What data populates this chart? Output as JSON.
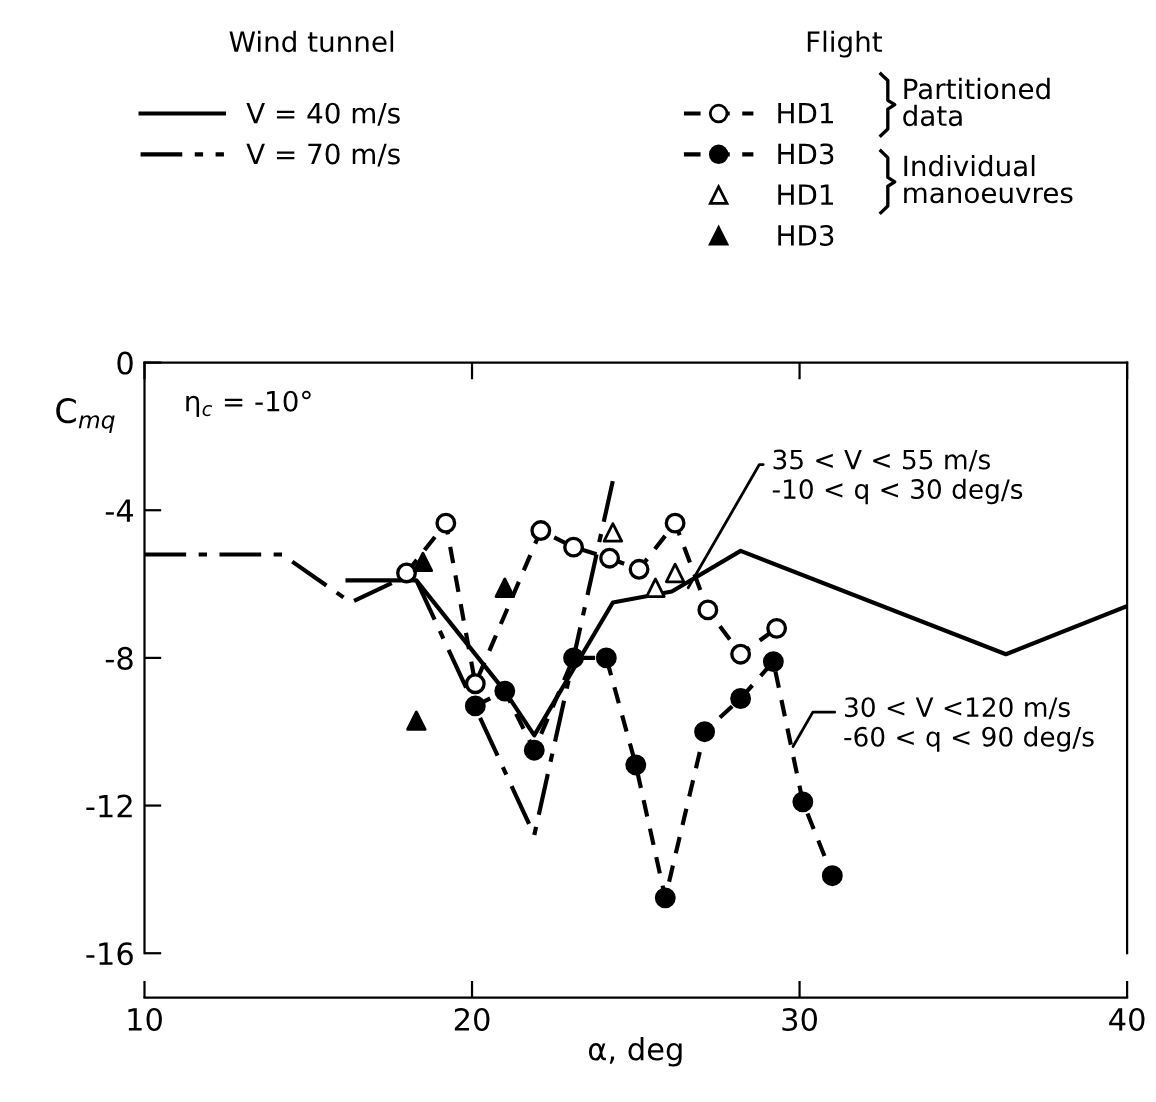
{
  "chart_data": {
    "type": "line",
    "ylabel": "C$_{mq}$",
    "xlabel": "α, deg",
    "xlim": [
      10,
      40
    ],
    "xticks": [
      10,
      20,
      30,
      40
    ],
    "ylim": [
      -16,
      0
    ],
    "yticks": [
      0,
      -4,
      -8,
      -12,
      -16
    ],
    "grid": false,
    "legend": "top",
    "series": [
      {
        "name": "V = 40 m/s",
        "color": "#000000",
        "line_style": "solid",
        "marker": "none",
        "x": [
          16.2,
          18.3,
          21.0,
          21.9,
          24.3,
          26.1,
          28.2,
          36.3,
          40
        ],
        "values": [
          -5.9,
          -5.9,
          -8.9,
          -10.1,
          -6.5,
          -6.2,
          -5.1,
          -7.9,
          -6.6
        ]
      },
      {
        "name": "V = 70 m/s",
        "color": "#000000",
        "line_style": "dashdot",
        "marker": "none",
        "x": [
          10,
          14.2,
          16.3,
          18.2,
          21.9,
          24.3
        ],
        "values": [
          -5.2,
          -5.2,
          -6.5,
          -5.7,
          -12.8,
          -3.2
        ]
      },
      {
        "name": "HD1",
        "color": "#000000",
        "colors": [
          "#ffffff",
          "#ffffff",
          "#ffffff",
          "#ffffff",
          "#ffffff",
          "#ffffff",
          "#ffffff",
          "#ffffff",
          "#ffffff",
          "#ffffff",
          "#ffffff"
        ],
        "line_style": "dashed",
        "marker": "circle",
        "x": [
          18.0,
          19.2,
          20.1,
          22.1,
          23.1,
          24.2,
          25.1,
          26.2,
          27.2,
          28.2,
          29.3
        ],
        "values": [
          -5.7,
          -4.35,
          -8.7,
          -4.55,
          -5.0,
          -5.3,
          -5.6,
          -4.35,
          -6.7,
          -7.9,
          -7.2
        ]
      },
      {
        "name": "HD3",
        "color": "#000000",
        "line_style": "dashed",
        "marker": "circle",
        "x": [
          20.1,
          21.0,
          21.9,
          23.1,
          24.1,
          25.0,
          25.9,
          27.1,
          28.2,
          29.2,
          30.1,
          31.0
        ],
        "values": [
          -9.3,
          -8.9,
          -10.5,
          -8.0,
          -8.0,
          -10.9,
          -14.5,
          -10.0,
          -9.1,
          -8.1,
          -11.9,
          -13.9
        ]
      },
      {
        "name": "HD1",
        "type": "scatter",
        "color": "#000000",
        "colors": [
          "#ffffff",
          "#ffffff",
          "#ffffff"
        ],
        "marker": "triangle",
        "x": [
          24.3,
          25.6,
          26.2
        ],
        "values": [
          -4.6,
          -6.1,
          -5.7
        ]
      },
      {
        "name": "HD3",
        "type": "scatter",
        "color": "#000000",
        "marker": "triangle",
        "x": [
          18.3,
          18.5,
          21.0
        ],
        "values": [
          -9.7,
          -5.4,
          -6.1
        ]
      }
    ],
    "annotations": [
      "Wind tunnel",
      "Flight",
      "Partitioned data",
      "Individual manoeuvres",
      "η$_{c}$ = -10°",
      {
        "text": "35 < V < 55 m/s\n-10 < q < 30 deg/s",
        "x": 26.6,
        "y": -6.1
      },
      {
        "text": "30 < V <120 m/s\n-60 < q < 90 deg/s",
        "x": 29.8,
        "y": -10.4
      }
    ]
  }
}
